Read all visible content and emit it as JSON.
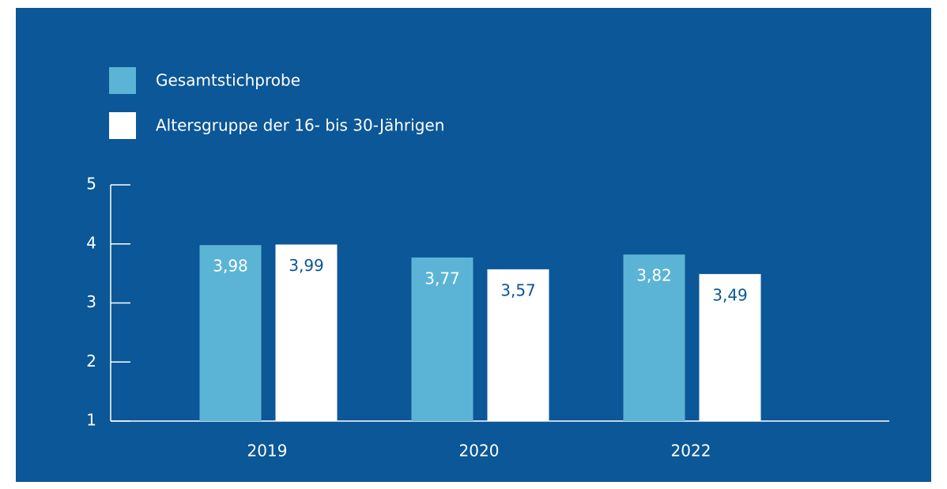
{
  "chart_data": {
    "type": "bar",
    "categories": [
      "2019",
      "2020",
      "2022"
    ],
    "series": [
      {
        "name": "Gesamtstichprobe",
        "color": "#5bb4d5",
        "values": [
          3.98,
          3.77,
          3.82
        ],
        "value_labels": [
          "3,98",
          "3,77",
          "3,82"
        ]
      },
      {
        "name": "Altersgruppe der 16- bis 30-Jährigen",
        "color": "#ffffff",
        "values": [
          3.99,
          3.57,
          3.49
        ],
        "value_labels": [
          "3,99",
          "3,57",
          "3,49"
        ]
      }
    ],
    "ylim": [
      1,
      5
    ],
    "yticks": [
      1,
      2,
      3,
      4,
      5
    ],
    "grid": false,
    "legend": "top-left"
  }
}
